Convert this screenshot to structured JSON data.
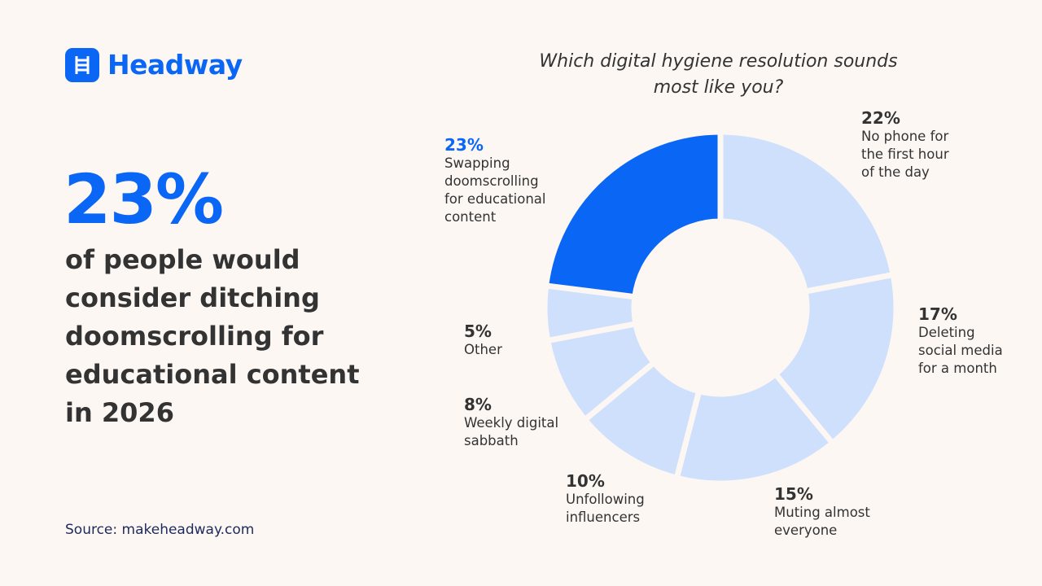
{
  "header": {
    "logo": "Headway"
  },
  "headline": {
    "stat": "23%",
    "text": "of people would consider ditching doomscrolling for educational content in 2026"
  },
  "source": "Source: makeheadway.com",
  "chart_data": {
    "type": "donut",
    "title": "Which digital hygiene resolution sounds most like you?",
    "categories": [
      "No phone for the first hour of the day",
      "Deleting social media for a month",
      "Muting almost everyone",
      "Unfollowing influencers",
      "Weekly digital sabbath",
      "Other",
      "Swapping doomscrolling for educational content"
    ],
    "values": [
      22,
      17,
      15,
      10,
      8,
      5,
      23
    ],
    "value_labels": [
      "22%",
      "17%",
      "15%",
      "10%",
      "8%",
      "5%",
      "23%"
    ],
    "colors": [
      "#cfe0fc",
      "#cfe0fc",
      "#cfe0fc",
      "#cfe0fc",
      "#cfe0fc",
      "#cfe0fc",
      "#0a66f5"
    ]
  }
}
